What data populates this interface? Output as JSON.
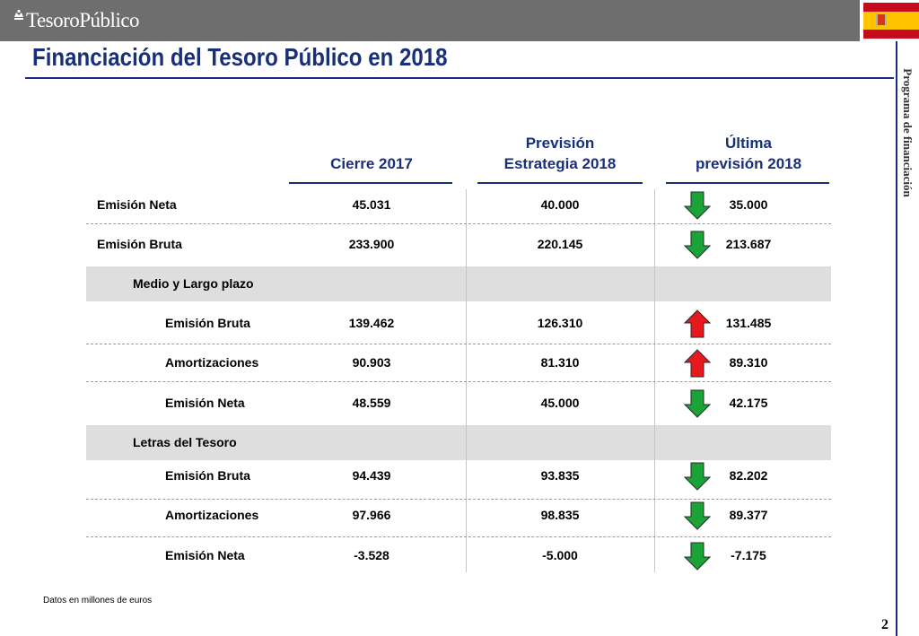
{
  "header": {
    "logo_text": "TesoroPúblico",
    "flag_name": "spain-flag"
  },
  "title": "Financiación del Tesoro Público en 2018",
  "side_label": "Programa de financiación",
  "columns": [
    "Cierre 2017",
    "Previsión Estrategia 2018",
    "Última previsión 2018"
  ],
  "column_lines": [
    [
      "Cierre 2017"
    ],
    [
      "Previsión",
      "Estrategia 2018"
    ],
    [
      "Última",
      "previsión 2018"
    ]
  ],
  "rows": [
    {
      "label": "Emisión Neta",
      "level": 0,
      "values": [
        "45.031",
        "40.000",
        "35.000"
      ],
      "trend": "down"
    },
    {
      "label": "Emisión Bruta",
      "level": 0,
      "values": [
        "233.900",
        "220.145",
        "213.687"
      ],
      "trend": "down"
    },
    {
      "label": "Medio y Largo plazo",
      "level": 1,
      "section": true
    },
    {
      "label": "Emisión Bruta",
      "level": 2,
      "values": [
        "139.462",
        "126.310",
        "131.485"
      ],
      "trend": "up"
    },
    {
      "label": "Amortizaciones",
      "level": 2,
      "values": [
        "90.903",
        "81.310",
        "89.310"
      ],
      "trend": "up"
    },
    {
      "label": "Emisión Neta",
      "level": 2,
      "values": [
        "48.559",
        "45.000",
        "42.175"
      ],
      "trend": "down"
    },
    {
      "label": "Letras del Tesoro",
      "level": 1,
      "section": true
    },
    {
      "label": "Emisión Bruta",
      "level": 2,
      "values": [
        "94.439",
        "93.835",
        "82.202"
      ],
      "trend": "down"
    },
    {
      "label": "Amortizaciones",
      "level": 2,
      "values": [
        "97.966",
        "98.835",
        "89.377"
      ],
      "trend": "down"
    },
    {
      "label": "Emisión Neta",
      "level": 2,
      "values": [
        "-3.528",
        "-5.000",
        "-7.175"
      ],
      "trend": "down"
    }
  ],
  "trend_icons": {
    "up": "red-up-arrow-icon",
    "down": "green-down-arrow-icon"
  },
  "colors": {
    "title": "#1a2f7a",
    "arrow_up": "#e8191d",
    "arrow_down": "#1aa336"
  },
  "footnote": "Datos en millones de euros",
  "page_number": "2"
}
